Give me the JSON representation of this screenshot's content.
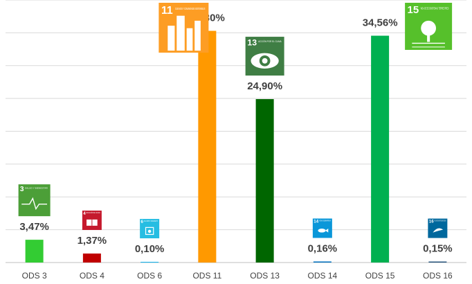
{
  "chart_data": {
    "type": "bar",
    "categories": [
      "ODS 3",
      "ODS 4",
      "ODS 6",
      "ODS 11",
      "ODS 13",
      "ODS 14",
      "ODS 15",
      "ODS 16"
    ],
    "values": [
      3.47,
      1.37,
      0.1,
      35.3,
      24.9,
      0.16,
      34.56,
      0.15
    ],
    "data_labels": [
      "3,47%",
      "1,37%",
      "0,10%",
      "35,30%",
      "24,90%",
      "0,16%",
      "34,56%",
      "0,15%"
    ],
    "colors": [
      "#33cc33",
      "#c00000",
      "#00b0f0",
      "#ff9900",
      "#006600",
      "#0070c0",
      "#00b050",
      "#1f4e79"
    ],
    "ylim": [
      0,
      40
    ],
    "grid": true,
    "title": "",
    "xlabel": "",
    "ylabel": ""
  },
  "icons": [
    {
      "category": "ODS 3",
      "number": "3",
      "text": "SALUD Y BIENESTAR",
      "color": "#4c9f38",
      "symbol": "heartbeat-icon"
    },
    {
      "category": "ODS 4",
      "number": "4",
      "text": "EDUCACIÓN DE CALIDAD",
      "color": "#c5192d",
      "symbol": "book-icon"
    },
    {
      "category": "ODS 6",
      "number": "6",
      "text": "AGUA LIMPIA Y SANEAMIENTO",
      "color": "#26bde2",
      "symbol": "water-icon"
    },
    {
      "category": "ODS 11",
      "number": "11",
      "text": "CIUDADES Y COMUNIDADES SOSTENIBLES",
      "color": "#fd9d24",
      "symbol": "city-icon"
    },
    {
      "category": "ODS 13",
      "number": "13",
      "text": "ACCIÓN POR EL CLIMA",
      "color": "#3f7e44",
      "symbol": "eye-globe-icon"
    },
    {
      "category": "ODS 14",
      "number": "14",
      "text": "VIDA SUBMARINA",
      "color": "#0a97d9",
      "symbol": "fish-icon"
    },
    {
      "category": "ODS 15",
      "number": "15",
      "text": "VIDA DE ECOSISTEMAS TERRESTRES",
      "color": "#56c02b",
      "symbol": "tree-icon"
    },
    {
      "category": "ODS 16",
      "number": "16",
      "text": "PAZ, JUSTICIA E INSTITUCIONES SÓLIDAS",
      "color": "#00689d",
      "symbol": "dove-icon"
    }
  ]
}
